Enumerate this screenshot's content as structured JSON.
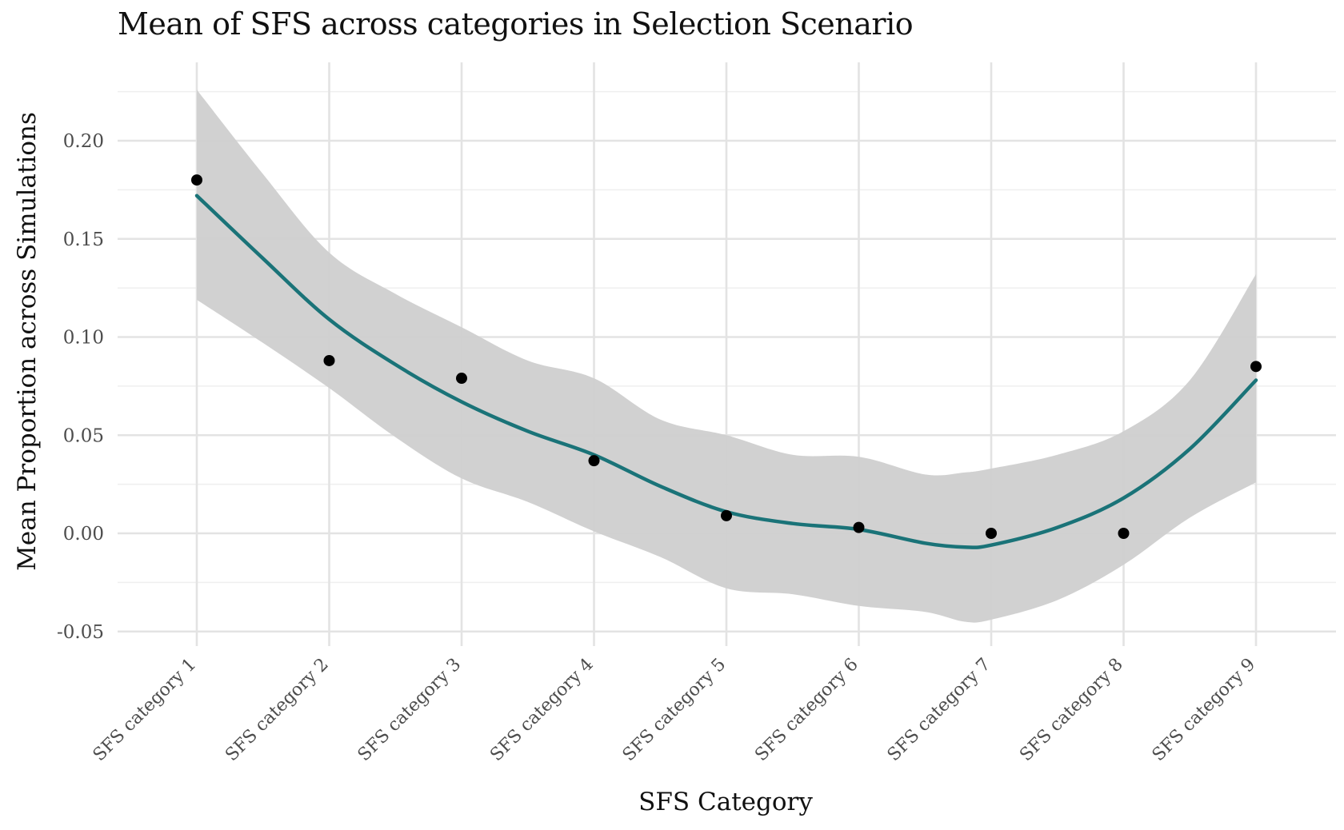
{
  "chart_data": {
    "type": "scatter",
    "title": "Mean of SFS across categories in Selection Scenario",
    "xlabel": "SFS Category",
    "ylabel": "Mean Proportion across Simulations",
    "categories": [
      "SFS category 1",
      "SFS category 2",
      "SFS category 3",
      "SFS category 4",
      "SFS category 5",
      "SFS category 6",
      "SFS category 7",
      "SFS category 8",
      "SFS category 9"
    ],
    "ylim": [
      -0.055,
      0.225
    ],
    "yticks": [
      -0.05,
      0.0,
      0.05,
      0.1,
      0.15,
      0.2
    ],
    "ytick_labels": [
      "-0.05",
      "0.00",
      "0.05",
      "0.10",
      "0.15",
      "0.20"
    ],
    "grid": true,
    "points": [
      0.18,
      0.088,
      0.079,
      0.037,
      0.009,
      0.003,
      0.0,
      0.0,
      0.085
    ],
    "smooth": {
      "x": [
        1,
        1.5,
        2,
        2.5,
        3,
        3.5,
        4,
        4.5,
        5,
        5.5,
        6,
        6.5,
        6.8,
        7,
        7.5,
        8,
        8.5,
        9
      ],
      "fit": [
        0.172,
        0.14,
        0.109,
        0.086,
        0.067,
        0.052,
        0.04,
        0.024,
        0.011,
        0.005,
        0.002,
        -0.005,
        -0.007,
        -0.006,
        0.003,
        0.018,
        0.043,
        0.078
      ],
      "lower": [
        0.119,
        0.097,
        0.074,
        0.049,
        0.028,
        0.016,
        0.001,
        -0.012,
        -0.028,
        -0.031,
        -0.037,
        -0.04,
        -0.045,
        -0.044,
        -0.034,
        -0.016,
        0.008,
        0.026
      ],
      "upper": [
        0.226,
        0.183,
        0.143,
        0.122,
        0.105,
        0.088,
        0.079,
        0.058,
        0.05,
        0.04,
        0.039,
        0.03,
        0.031,
        0.033,
        0.04,
        0.052,
        0.078,
        0.132
      ]
    },
    "colors": {
      "line": "#1a7378",
      "band": "#cfcfcf",
      "points": "#000000",
      "grid_major": "#e3e3e3",
      "grid_minor": "#efefef"
    }
  }
}
